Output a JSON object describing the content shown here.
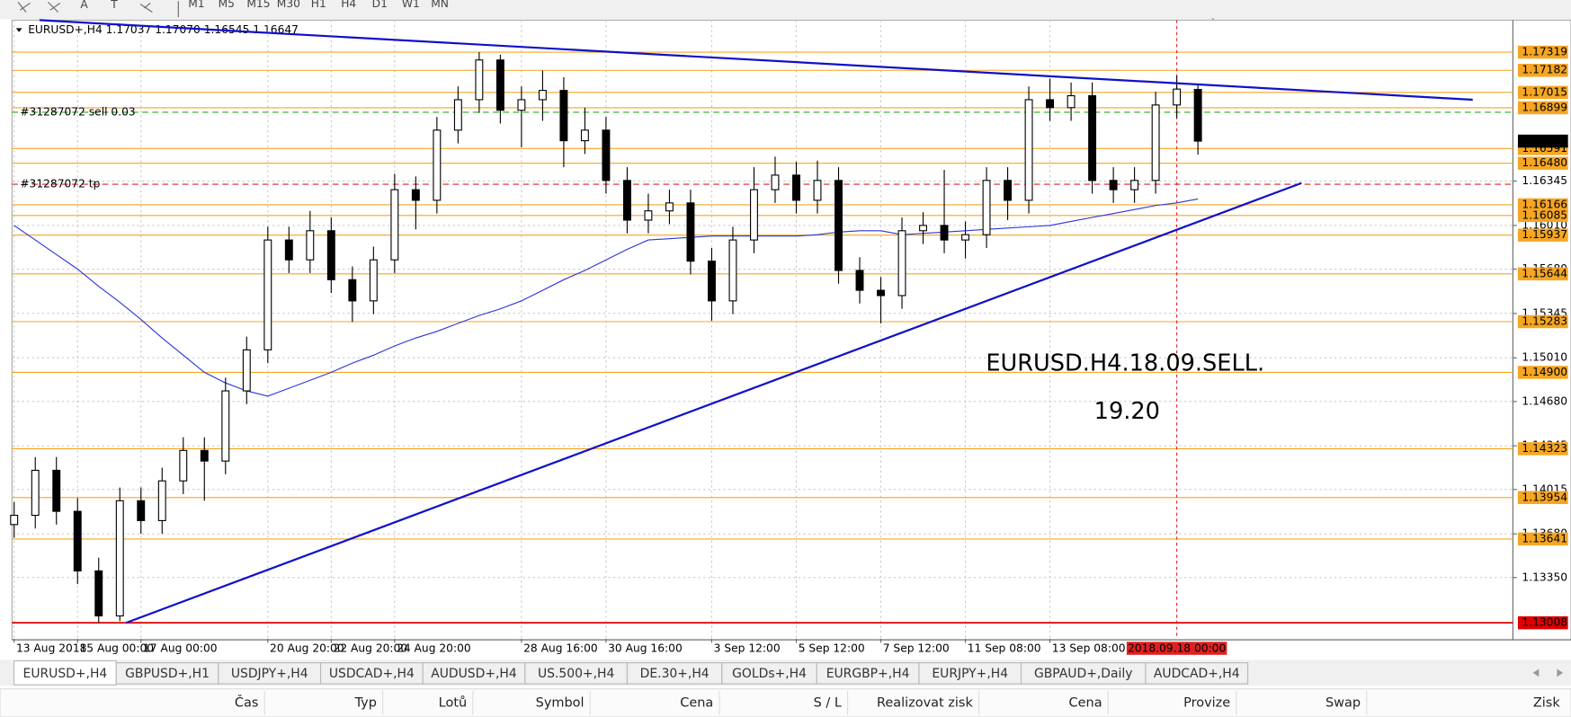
{
  "toolbar": {
    "tools": [
      "A",
      "T"
    ],
    "timeframes": [
      "M1",
      "M5",
      "M15",
      "M30",
      "H1",
      "H4",
      "D1",
      "W1",
      "MN"
    ]
  },
  "chart_data": {
    "type": "candlestick",
    "header": "EURUSD+,H4  1.17037 1.17070 1.16545 1.16647",
    "categories": [
      "13 Aug 2018",
      null,
      null,
      "15 Aug 00:00",
      null,
      null,
      "17 Aug 00:00",
      null,
      null,
      null,
      null,
      null,
      "20 Aug 20:00",
      null,
      null,
      "22 Aug 20:00",
      null,
      null,
      "24 Aug 20:00",
      null,
      null,
      null,
      null,
      null,
      "28 Aug 16:00",
      null,
      null,
      null,
      "30 Aug 16:00",
      null,
      null,
      null,
      null,
      "3 Sep 12:00",
      null,
      null,
      null,
      "5 Sep 12:00",
      null,
      null,
      null,
      "7 Sep 12:00",
      null,
      null,
      null,
      "11 Sep 08:00",
      null,
      null,
      null,
      "13 Sep 08:00",
      null,
      null,
      null,
      null,
      null,
      null,
      null
    ],
    "open": [
      1.1375,
      1.1382,
      1.1416,
      1.1385,
      1.134,
      1.1306,
      1.1393,
      1.1378,
      1.1408,
      1.1431,
      1.1423,
      1.1476,
      1.1507,
      1.159,
      1.1575,
      1.1597,
      1.156,
      1.1544,
      1.1575,
      1.1628,
      1.162,
      1.1673,
      1.1696,
      1.1726,
      1.1688,
      1.1696,
      1.1703,
      1.1665,
      1.1673,
      1.1635,
      1.1605,
      1.1612,
      1.1618,
      1.1574,
      1.1544,
      1.159,
      1.1628,
      1.1639,
      1.162,
      1.1635,
      1.1567,
      1.1552,
      1.1548,
      1.1597,
      1.1601,
      1.159,
      1.1594,
      1.1635,
      1.162,
      1.1696,
      1.169,
      1.1699,
      1.1635,
      1.1628,
      1.1635,
      1.1692,
      1.17037
    ],
    "high": [
      1.1392,
      1.1426,
      1.1426,
      1.1395,
      1.135,
      1.1403,
      1.1403,
      1.1418,
      1.1441,
      1.1441,
      1.1486,
      1.1517,
      1.16,
      1.16,
      1.1612,
      1.1607,
      1.157,
      1.1585,
      1.164,
      1.1638,
      1.1683,
      1.1706,
      1.17319,
      1.173,
      1.1706,
      1.1718,
      1.1713,
      1.169,
      1.1683,
      1.1645,
      1.1625,
      1.1628,
      1.1628,
      1.1584,
      1.16,
      1.1645,
      1.1653,
      1.1649,
      1.165,
      1.1645,
      1.1577,
      1.1562,
      1.1607,
      1.1611,
      1.1643,
      1.1604,
      1.1645,
      1.1645,
      1.1706,
      1.1712,
      1.1709,
      1.1709,
      1.1645,
      1.1645,
      1.1702,
      1.1714,
      1.1707
    ],
    "low": [
      1.1365,
      1.1372,
      1.1375,
      1.133,
      1.13008,
      1.1302,
      1.1368,
      1.1368,
      1.1398,
      1.1393,
      1.1413,
      1.1466,
      1.1497,
      1.1565,
      1.1565,
      1.155,
      1.1528,
      1.1534,
      1.1565,
      1.1598,
      1.161,
      1.1663,
      1.1686,
      1.1678,
      1.166,
      1.168,
      1.1645,
      1.1655,
      1.1625,
      1.1595,
      1.1595,
      1.1602,
      1.1564,
      1.1529,
      1.1534,
      1.158,
      1.1618,
      1.161,
      1.161,
      1.1557,
      1.1542,
      1.1527,
      1.1538,
      1.1587,
      1.158,
      1.1576,
      1.1584,
      1.1605,
      1.161,
      1.168,
      1.168,
      1.1625,
      1.1618,
      1.1618,
      1.1625,
      1.1682,
      1.16545
    ],
    "close": [
      1.1382,
      1.1416,
      1.1385,
      1.134,
      1.1306,
      1.1393,
      1.1378,
      1.1408,
      1.1431,
      1.1423,
      1.1476,
      1.1507,
      1.159,
      1.1575,
      1.1597,
      1.156,
      1.1544,
      1.1575,
      1.1628,
      1.162,
      1.1673,
      1.1696,
      1.1726,
      1.1688,
      1.1696,
      1.1703,
      1.1665,
      1.1673,
      1.1635,
      1.1605,
      1.1612,
      1.1618,
      1.1574,
      1.1544,
      1.159,
      1.1628,
      1.1639,
      1.162,
      1.1635,
      1.1567,
      1.1552,
      1.1548,
      1.1597,
      1.1601,
      1.159,
      1.1594,
      1.1635,
      1.162,
      1.1696,
      1.169,
      1.1699,
      1.1635,
      1.1628,
      1.1635,
      1.1692,
      1.1704,
      1.16647
    ],
    "color_up": "#ffffff",
    "color_down": "#000000",
    "moving_average": {
      "color": "#2a35d8",
      "values": [
        1.1601,
        1.159,
        1.1579,
        1.1568,
        1.1555,
        1.1543,
        1.153,
        1.1516,
        1.1503,
        1.149,
        1.1482,
        1.1476,
        1.1472,
        1.1478,
        1.1484,
        1.149,
        1.1497,
        1.1503,
        1.151,
        1.1516,
        1.1521,
        1.1527,
        1.1533,
        1.1538,
        1.1544,
        1.1552,
        1.156,
        1.1567,
        1.1575,
        1.1583,
        1.159,
        1.1591,
        1.1592,
        1.1593,
        1.1593,
        1.1593,
        1.1593,
        1.1593,
        1.1594,
        1.1596,
        1.1597,
        1.1597,
        1.1594,
        1.1595,
        1.1596,
        1.1597,
        1.1598,
        1.1599,
        1.16,
        1.1601,
        1.1604,
        1.1607,
        1.161,
        1.1613,
        1.1616,
        1.1618,
        1.1621
      ]
    },
    "trendlines": [
      {
        "color": "#1010c8",
        "x": [
          1.2,
          69
        ],
        "y": [
          1.17561,
          1.1696
        ]
      },
      {
        "color": "#1010c8",
        "x": [
          5.3,
          60.9
        ],
        "y": [
          1.13008,
          1.1633
        ]
      }
    ],
    "cursor": {
      "label": "2018.09.18 00:00",
      "x": 55,
      "color": "#e02020"
    },
    "levels": [
      1.17319,
      1.17182,
      1.17015,
      1.16899,
      1.16591,
      {
        "value": 1.1648,
        "label": "1.16480"
      },
      1.16166,
      1.16085,
      1.15937,
      1.15644,
      1.15283,
      {
        "value": 1.149,
        "label": "1.14900"
      },
      1.14323,
      1.13954,
      1.13641
    ],
    "level_color": "#f5a623",
    "period_low": {
      "price": 1.13008,
      "color": "#e00000"
    },
    "orders": [
      {
        "label": "#31287072 sell 0.03",
        "price": 1.16865,
        "color": "#22aa22"
      },
      {
        "label": "#31287072 tp",
        "price": 1.16321,
        "color": "#dd2222"
      }
    ],
    "annotations": [
      {
        "text": "EURUSD.H4.18.09.SELL.",
        "color": "#ee1c1c"
      },
      {
        "text": "19.20",
        "color": "#000000"
      }
    ],
    "xlim": [
      -0.1,
      70.9
    ],
    "ylim": [
      1.12887,
      1.17561
    ],
    "yticks": [
      1.16345,
      {
        "value": 1.1601,
        "label": "1.16010"
      },
      {
        "value": 1.1568,
        "label": "1.15680"
      },
      1.15345,
      {
        "value": 1.1501,
        "label": "1.15010"
      },
      {
        "value": 1.1468,
        "label": "1.14680"
      },
      1.14345,
      1.14015,
      {
        "value": 1.1368,
        "label": "1.13680"
      },
      {
        "value": 1.1335,
        "label": "1.13350"
      }
    ],
    "grid": true
  },
  "tabs": [
    "EURUSD+,H4",
    "GBPUSD+,H1",
    "USDJPY+,H4",
    "USDCAD+,H4",
    "AUDUSD+,H4",
    "US.500+,H4",
    "DE.30+,H4",
    "GOLDs+,H4",
    "EURGBP+,H4",
    "EURJPY+,H4",
    "GBPAUD+,Daily",
    "AUDCAD+,H4"
  ],
  "active_tab": 0,
  "columns": [
    "Čas",
    "Typ",
    "Lotů",
    "Symbol",
    "Cena",
    "S / L",
    "Realizovat zisk",
    "Cena",
    "Provize",
    "Swap",
    "Zisk"
  ]
}
